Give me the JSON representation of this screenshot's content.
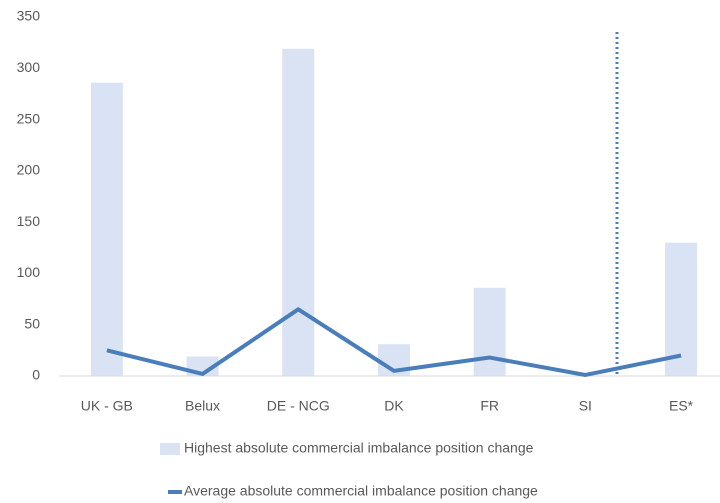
{
  "chart_data": {
    "type": "combo",
    "categories": [
      "UK - GB",
      "Belux",
      "DE - NCG",
      "DK",
      "FR",
      "SI",
      "ES*"
    ],
    "series": [
      {
        "name": "Highest absolute commercial imbalance position change",
        "type": "bar",
        "color": "#dae3f3",
        "values": [
          286,
          19,
          319,
          31,
          86,
          0,
          130
        ]
      },
      {
        "name": "Average absolute commercial imbalance position change",
        "type": "line",
        "color": "#4a7ebb",
        "values": [
          25,
          2,
          65,
          5,
          18,
          1,
          20
        ]
      }
    ],
    "ylim": [
      0,
      350
    ],
    "yticks": [
      0,
      50,
      100,
      150,
      200,
      250,
      300,
      350
    ],
    "grid": false,
    "legend": "bottom"
  }
}
